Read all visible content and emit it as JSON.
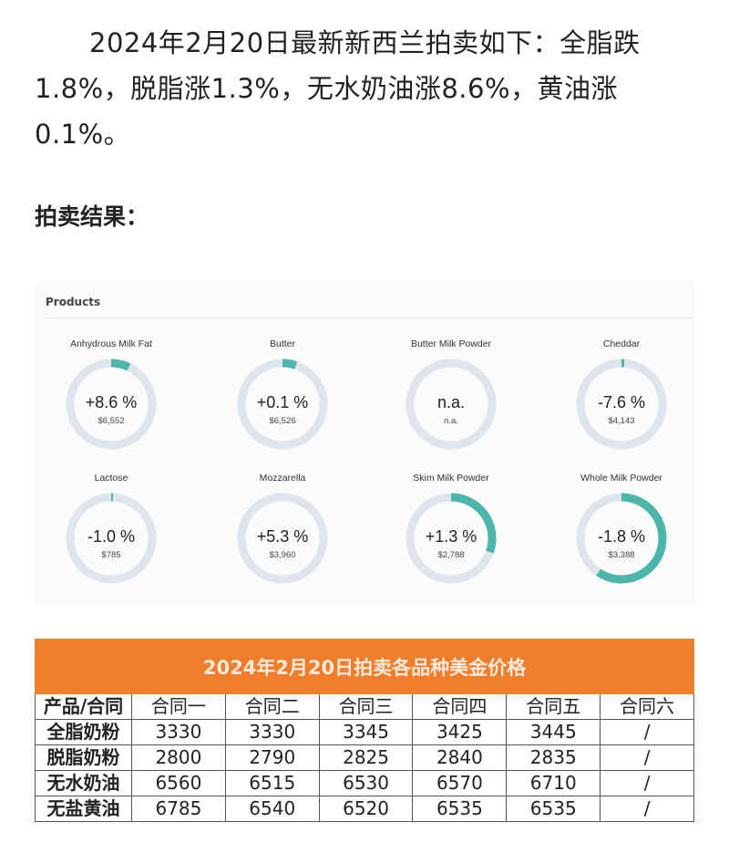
{
  "article": {
    "paragraph": "2024年2月20日最新新西兰拍卖如下：全脂跌1.8%，脱脂涨1.3%，无水奶油涨8.6%，黄油涨0.1%。",
    "heading": "拍卖结果："
  },
  "products": {
    "title": "Products",
    "items": [
      {
        "name": "Anhydrous Milk Fat",
        "change": "+8.6 %",
        "price": "$6,552"
      },
      {
        "name": "Butter",
        "change": "+0.1 %",
        "price": "$6,526"
      },
      {
        "name": "Butter Milk Powder",
        "change": "n.a.",
        "price": "n.a."
      },
      {
        "name": "Cheddar",
        "change": "-7.6 %",
        "price": "$4,143"
      },
      {
        "name": "Lactose",
        "change": "-1.0 %",
        "price": "$785"
      },
      {
        "name": "Mozzarella",
        "change": "+5.3 %",
        "price": "$3,960"
      },
      {
        "name": "Skim Milk Powder",
        "change": "+1.3 %",
        "price": "$2,788"
      },
      {
        "name": "Whole Milk Powder",
        "change": "-1.8 %",
        "price": "$3,388"
      }
    ]
  },
  "table": {
    "title": "2024年2月20日拍卖各品种美金价格",
    "header": [
      "产品/合同",
      "合同一",
      "合同二",
      "合同三",
      "合同四",
      "合同五",
      "合同六"
    ],
    "rows": [
      [
        "全脂奶粉",
        "3330",
        "3330",
        "3345",
        "3425",
        "3445",
        "/"
      ],
      [
        "脱脂奶粉",
        "2800",
        "2790",
        "2825",
        "2840",
        "2835",
        "/"
      ],
      [
        "无水奶油",
        "6560",
        "6515",
        "6530",
        "6570",
        "6710",
        "/"
      ],
      [
        "无盐黄油",
        "6785",
        "6540",
        "6520",
        "6535",
        "6535",
        "/"
      ]
    ]
  }
}
